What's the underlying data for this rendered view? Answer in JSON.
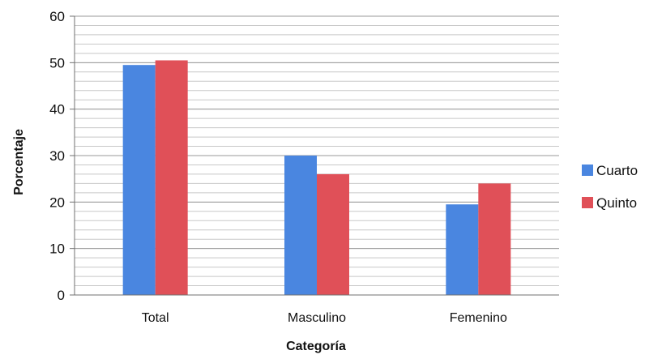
{
  "chart_data": {
    "type": "bar",
    "title": "",
    "xlabel": "Categoría",
    "ylabel": "Porcentaje",
    "categories": [
      "Total",
      "Masculino",
      "Femenino"
    ],
    "series": [
      {
        "name": "Cuarto",
        "values": [
          49.5,
          30,
          19.5
        ],
        "color": "#4a86e0"
      },
      {
        "name": "Quinto",
        "values": [
          50.5,
          26,
          24
        ],
        "color": "#e05058"
      }
    ],
    "ylim": [
      0,
      60
    ],
    "yticks": [
      0,
      10,
      20,
      30,
      40,
      50,
      60
    ],
    "y_minor_step": 2,
    "grid": true,
    "legend_position": "right",
    "colors": {
      "grid": "#9a9a9a",
      "grid_minor": "#c8c8c8",
      "axis": "#707070"
    }
  }
}
